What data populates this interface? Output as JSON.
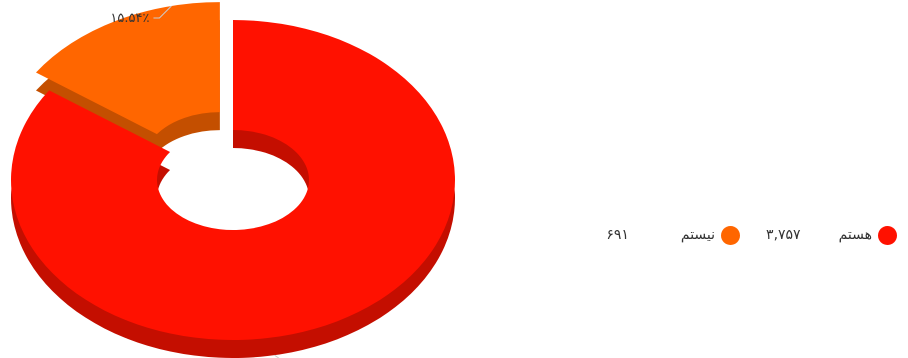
{
  "chart_data": {
    "type": "pie",
    "variant": "3d-donut",
    "title": "",
    "slices": [
      {
        "label": "هستم",
        "value": 3757,
        "value_text": "۳,۷۵۷",
        "percent": 84.46,
        "percent_text": "۸۴.۴۶٪",
        "color": "#ff1100",
        "side_color": "#c40e00"
      },
      {
        "label": "نیستم",
        "value": 691,
        "value_text": "۶۹۱",
        "percent": 15.54,
        "percent_text": "۱۵.۵۴٪",
        "color": "#ff6600",
        "side_color": "#c44f00"
      }
    ],
    "legend_position": "right"
  }
}
